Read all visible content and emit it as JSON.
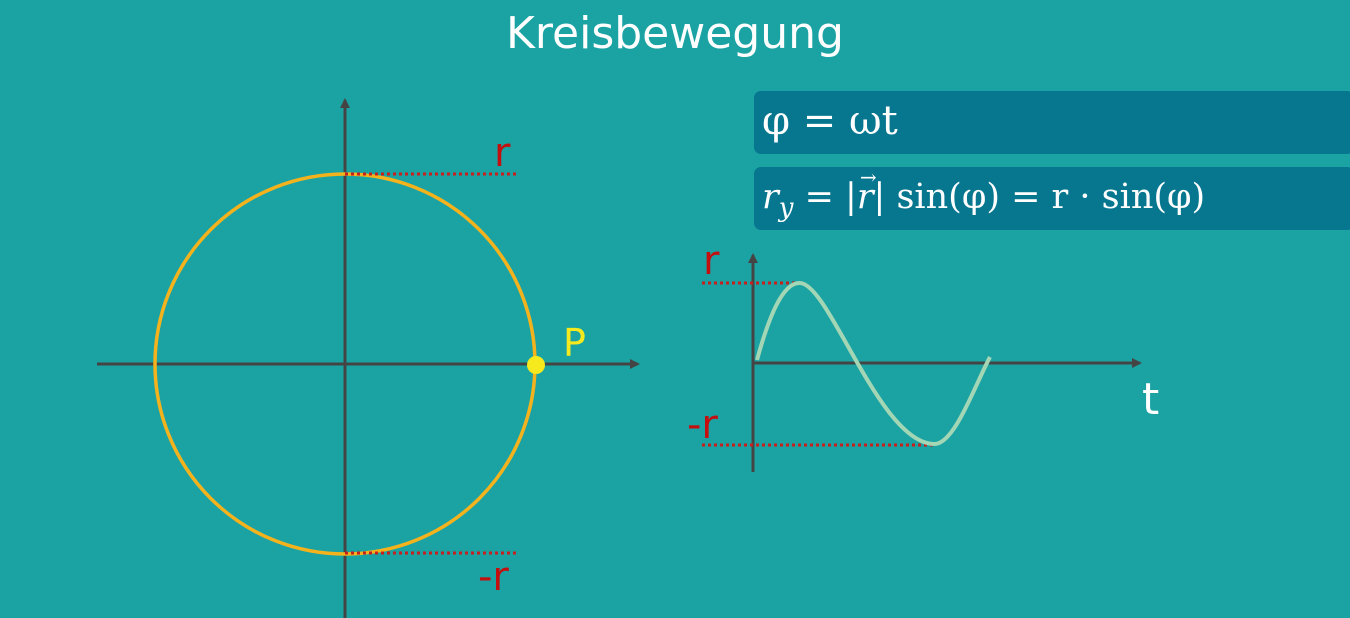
{
  "title": "Kreisbewegung",
  "formulas": {
    "f1": {
      "lhs": "φ",
      "rhs": "ωt"
    },
    "f2": {
      "r": "r",
      "sub_y": "y",
      "eq1": " = |",
      "vec_r": "r",
      "abs_close": "| sin(φ) = r · sin(φ)"
    }
  },
  "circle_diagram": {
    "label_r_top": "r",
    "label_r_bottom": "-r",
    "point_label": "P"
  },
  "sine_diagram": {
    "label_r_top": "r",
    "label_r_bottom": "-r",
    "axis_label_t": "t"
  },
  "colors": {
    "background": "#1ba3a4",
    "axis": "#444444",
    "circle": "#f4b31c",
    "point": "#f6ea1e",
    "point_label": "#f6ea1e",
    "dotted_guides": "#c81e1e",
    "red_labels": "#c40f0f",
    "sine_curve": "#a3d6b4",
    "formula_box": "#07768f"
  }
}
